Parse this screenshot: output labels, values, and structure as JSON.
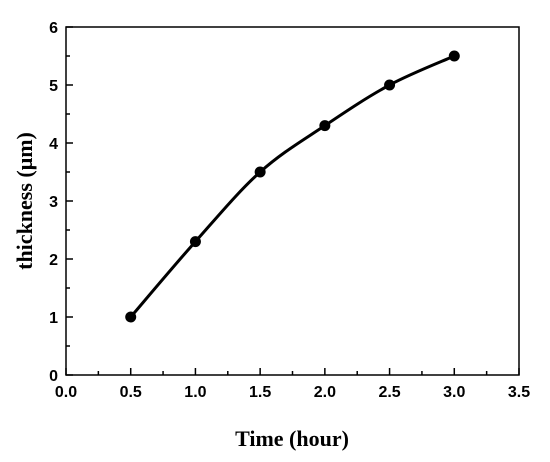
{
  "chart_data": {
    "type": "line",
    "title": "",
    "xlabel": "Time (hour)",
    "ylabel": "thickness (μm)",
    "xlim": [
      0.0,
      3.5
    ],
    "ylim": [
      0,
      6
    ],
    "x_ticks": [
      "0.0",
      "0.5",
      "1.0",
      "1.5",
      "2.0",
      "2.5",
      "3.0",
      "3.5"
    ],
    "y_ticks": [
      "0",
      "1",
      "2",
      "3",
      "4",
      "5",
      "6"
    ],
    "grid": false,
    "legend": "none",
    "series": [
      {
        "x": [
          0.5,
          1.0,
          1.5,
          2.0,
          2.5,
          3.0
        ],
        "y": [
          1.0,
          2.3,
          3.5,
          4.3,
          5.0,
          5.5
        ],
        "color": "#000000",
        "marker": "circle",
        "smooth": true
      }
    ]
  }
}
